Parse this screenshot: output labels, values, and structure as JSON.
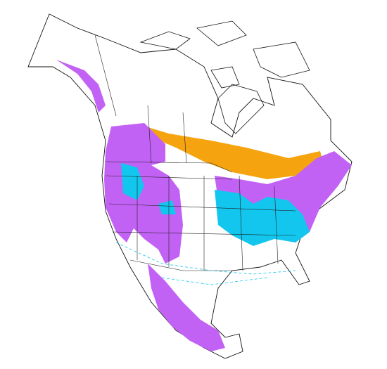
{
  "map": {
    "ranges": [
      {
        "color": "#f5a40f"
      },
      {
        "color": "#c262f5"
      },
      {
        "color": "#12c6ee"
      }
    ]
  }
}
